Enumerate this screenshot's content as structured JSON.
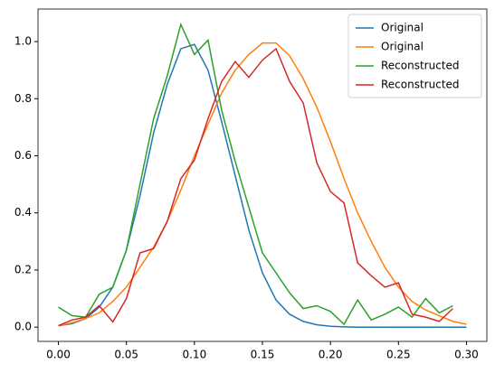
{
  "chart_data": {
    "type": "line",
    "x": [
      0,
      0.01,
      0.02,
      0.03,
      0.04,
      0.05,
      0.06,
      0.07,
      0.08,
      0.09,
      0.1,
      0.11,
      0.12,
      0.13,
      0.14,
      0.15,
      0.16,
      0.17,
      0.18,
      0.19,
      0.2,
      0.21,
      0.22,
      0.23,
      0.24,
      0.25,
      0.26,
      0.27,
      0.28,
      0.29,
      0.3
    ],
    "series": [
      {
        "name": "Original",
        "color": "#1f77b4",
        "values": [
          0.005,
          0.012,
          0.03,
          0.07,
          0.14,
          0.27,
          0.46,
          0.68,
          0.85,
          0.975,
          0.99,
          0.9,
          0.72,
          0.53,
          0.34,
          0.19,
          0.095,
          0.045,
          0.02,
          0.008,
          0.003,
          0.001,
          0,
          0,
          0,
          0,
          0,
          0,
          0,
          0,
          0
        ]
      },
      {
        "name": "Original",
        "color": "#ff7f0e",
        "values": [
          0.005,
          0.015,
          0.03,
          0.05,
          0.09,
          0.14,
          0.21,
          0.28,
          0.37,
          0.48,
          0.6,
          0.71,
          0.82,
          0.9,
          0.955,
          0.995,
          0.995,
          0.95,
          0.87,
          0.77,
          0.65,
          0.52,
          0.4,
          0.3,
          0.21,
          0.14,
          0.09,
          0.06,
          0.04,
          0.02,
          0.01
        ]
      },
      {
        "name": "Reconstructed",
        "color": "#2ca02c",
        "values": [
          0.07,
          0.04,
          0.035,
          0.115,
          0.14,
          0.27,
          0.5,
          0.73,
          0.88,
          1.06,
          0.955,
          1.005,
          0.76,
          0.58,
          0.42,
          0.26,
          0.19,
          0.12,
          0.065,
          0.075,
          0.055,
          0.01,
          0.095,
          0.025,
          0.045,
          0.07,
          0.035,
          0.1,
          0.05,
          0.075,
          null
        ]
      },
      {
        "name": "Reconstructed",
        "color": "#d62728",
        "values": [
          0.005,
          0.025,
          0.035,
          0.075,
          0.018,
          0.1,
          0.26,
          0.275,
          0.37,
          0.52,
          0.585,
          0.73,
          0.86,
          0.93,
          0.875,
          0.935,
          0.975,
          0.86,
          0.785,
          0.575,
          0.475,
          0.435,
          0.225,
          0.18,
          0.14,
          0.155,
          0.045,
          0.035,
          0.02,
          0.065,
          null
        ]
      }
    ],
    "xlim": [
      -0.015,
      0.315
    ],
    "ylim": [
      -0.05,
      1.114
    ],
    "xticks": [
      {
        "value": 0,
        "label": "0.00"
      },
      0.05,
      {
        "value": 0.1,
        "label": "0.10"
      },
      0.15,
      {
        "value": 0.2,
        "label": "0.20"
      },
      0.25,
      {
        "value": 0.3,
        "label": "0.30"
      }
    ],
    "yticks": [
      {
        "value": 0,
        "label": "0.0"
      },
      0.2,
      0.4,
      0.6,
      0.8,
      {
        "value": 1,
        "label": "1.0"
      }
    ],
    "legend": "upper right"
  }
}
